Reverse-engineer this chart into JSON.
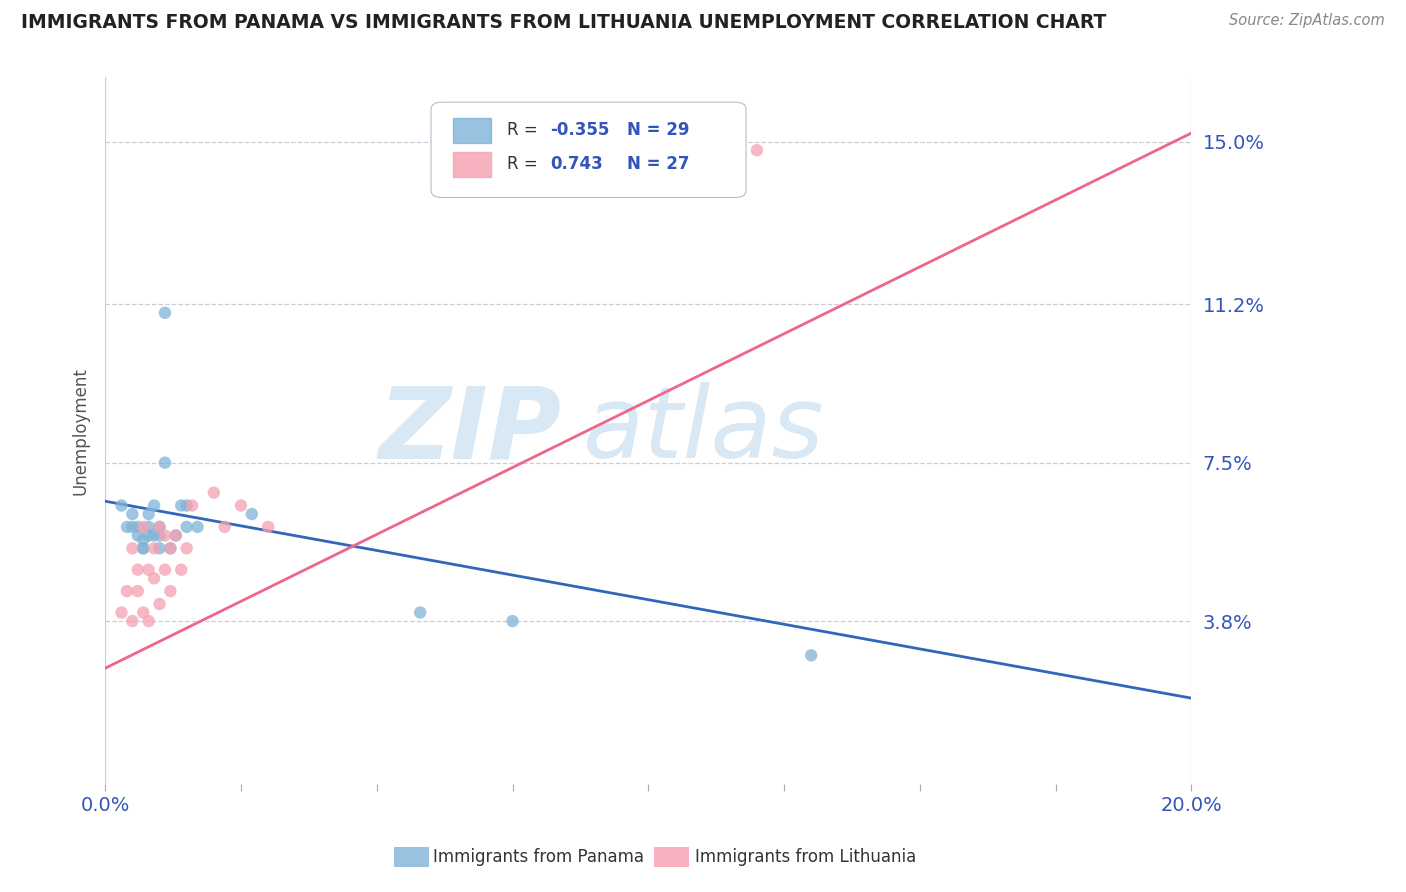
{
  "title": "IMMIGRANTS FROM PANAMA VS IMMIGRANTS FROM LITHUANIA UNEMPLOYMENT CORRELATION CHART",
  "source": "Source: ZipAtlas.com",
  "ylabel": "Unemployment",
  "xlim": [
    0.0,
    0.2
  ],
  "ylim": [
    0.0,
    0.165
  ],
  "yticks": [
    0.038,
    0.075,
    0.112,
    0.15
  ],
  "ytick_labels": [
    "3.8%",
    "7.5%",
    "11.2%",
    "15.0%"
  ],
  "xticks": [
    0.0,
    0.025,
    0.05,
    0.075,
    0.1,
    0.125,
    0.15,
    0.175,
    0.2
  ],
  "panama_color": "#7EB3D8",
  "lithuania_color": "#F4A0B0",
  "panama_line_color": "#3366BB",
  "lithuania_line_color": "#EE6688",
  "R_panama": -0.355,
  "N_panama": 29,
  "R_lithuania": 0.743,
  "N_lithuania": 27,
  "legend_R_color": "#3355BB",
  "grid_color": "#CCCCDD",
  "panama_line_start_y": 0.066,
  "panama_line_end_y": 0.02,
  "lithuania_line_start_y": 0.027,
  "lithuania_line_end_y": 0.152,
  "panama_scatter_x": [
    0.003,
    0.004,
    0.005,
    0.005,
    0.006,
    0.006,
    0.007,
    0.007,
    0.007,
    0.008,
    0.008,
    0.008,
    0.009,
    0.009,
    0.01,
    0.01,
    0.01,
    0.011,
    0.011,
    0.012,
    0.013,
    0.014,
    0.015,
    0.015,
    0.017,
    0.027,
    0.058,
    0.075,
    0.13
  ],
  "panama_scatter_y": [
    0.065,
    0.06,
    0.06,
    0.063,
    0.058,
    0.06,
    0.055,
    0.057,
    0.055,
    0.058,
    0.06,
    0.063,
    0.058,
    0.065,
    0.06,
    0.055,
    0.058,
    0.11,
    0.075,
    0.055,
    0.058,
    0.065,
    0.06,
    0.065,
    0.06,
    0.063,
    0.04,
    0.038,
    0.03
  ],
  "lithuania_scatter_x": [
    0.003,
    0.004,
    0.005,
    0.005,
    0.006,
    0.006,
    0.007,
    0.007,
    0.008,
    0.008,
    0.009,
    0.009,
    0.01,
    0.01,
    0.011,
    0.011,
    0.012,
    0.012,
    0.013,
    0.014,
    0.015,
    0.016,
    0.02,
    0.022,
    0.025,
    0.03,
    0.12
  ],
  "lithuania_scatter_y": [
    0.04,
    0.045,
    0.038,
    0.055,
    0.045,
    0.05,
    0.04,
    0.06,
    0.038,
    0.05,
    0.048,
    0.055,
    0.042,
    0.06,
    0.05,
    0.058,
    0.055,
    0.045,
    0.058,
    0.05,
    0.055,
    0.065,
    0.068,
    0.06,
    0.065,
    0.06,
    0.148
  ]
}
